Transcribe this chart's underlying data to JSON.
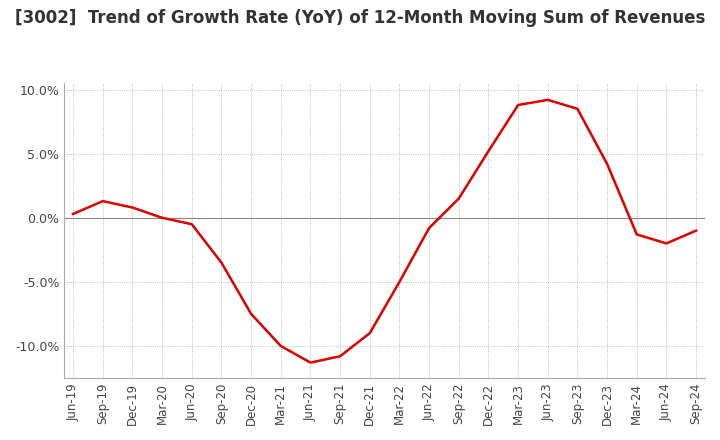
{
  "title": "[3002]  Trend of Growth Rate (YoY) of 12-Month Moving Sum of Revenues",
  "title_fontsize": 12,
  "line_color": "#dd0000",
  "background_color": "#ffffff",
  "plot_bg_color": "#ffffff",
  "grid_color": "#aaaaaa",
  "zero_line_color": "#888888",
  "ylim": [
    -0.125,
    0.105
  ],
  "yticks": [
    -0.1,
    -0.05,
    0.0,
    0.05,
    0.1
  ],
  "ytick_labels": [
    "-10.0%",
    "-5.0%",
    "0.0%",
    "5.0%",
    "10.0%"
  ],
  "dates": [
    "Jun-19",
    "Sep-19",
    "Dec-19",
    "Mar-20",
    "Jun-20",
    "Sep-20",
    "Dec-20",
    "Mar-21",
    "Jun-21",
    "Sep-21",
    "Dec-21",
    "Mar-22",
    "Jun-22",
    "Sep-22",
    "Dec-22",
    "Mar-23",
    "Jun-23",
    "Sep-23",
    "Dec-23",
    "Mar-24",
    "Jun-24",
    "Sep-24"
  ],
  "values": [
    0.003,
    0.013,
    0.008,
    0.0,
    -0.005,
    -0.035,
    -0.075,
    -0.1,
    -0.113,
    -0.108,
    -0.09,
    -0.05,
    -0.008,
    0.015,
    0.052,
    0.088,
    0.092,
    0.085,
    0.042,
    -0.013,
    -0.02,
    -0.01
  ]
}
